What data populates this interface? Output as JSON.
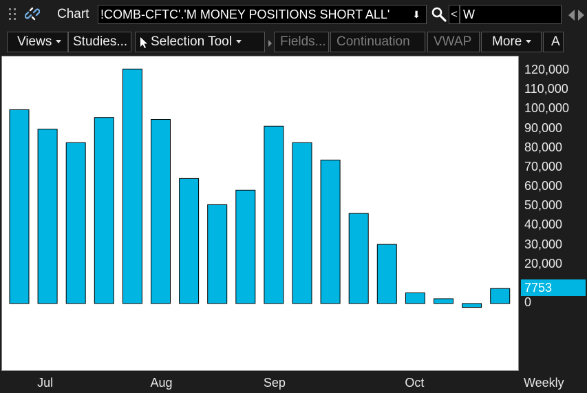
{
  "header": {
    "title": "Chart",
    "symbol": "!COMB-CFTC'.'M MONEY POSITIONS SHORT ALL'",
    "symbol_dropdown_glyph": "⬇",
    "back_label": "<",
    "period": "W",
    "icons": [
      "grip-icon",
      "link-icon",
      "search-icon",
      "scroll-left-icon",
      "scroll-right-icon"
    ]
  },
  "toolbar": {
    "views": "Views",
    "studies": "Studies...",
    "selection_tool": "Selection Tool",
    "fields": "Fields...",
    "continuation": "Continuation",
    "vwap": "VWAP",
    "more": "More",
    "overflow": "A"
  },
  "colors": {
    "bar_fill": "#00b5e2",
    "bar_stroke": "#000000",
    "plot_background": "#ffffff",
    "app_background": "#1d1d1d"
  },
  "chart_data": {
    "type": "bar",
    "y_tick_labels": [
      "120,000",
      "110,000",
      "100,000",
      "90,000",
      "80,000",
      "70,000",
      "60,000",
      "50,000",
      "40,000",
      "30,000",
      "20,000",
      "0"
    ],
    "y_ticks": [
      120000,
      110000,
      100000,
      90000,
      80000,
      70000,
      60000,
      50000,
      40000,
      30000,
      20000,
      0
    ],
    "ylim": [
      -2500,
      125000
    ],
    "x_tick_labels": [
      "Jul",
      "Aug",
      "Sep",
      "Oct"
    ],
    "x_tick_bar_index": [
      1,
      5,
      9,
      14
    ],
    "values": [
      100000,
      90000,
      83000,
      96000,
      121000,
      95000,
      64500,
      51000,
      58500,
      91500,
      83000,
      74000,
      46500,
      30500,
      5500,
      2500,
      -2000,
      7753
    ],
    "last_value": "7753",
    "aggregation": "Weekly",
    "grid": false
  }
}
